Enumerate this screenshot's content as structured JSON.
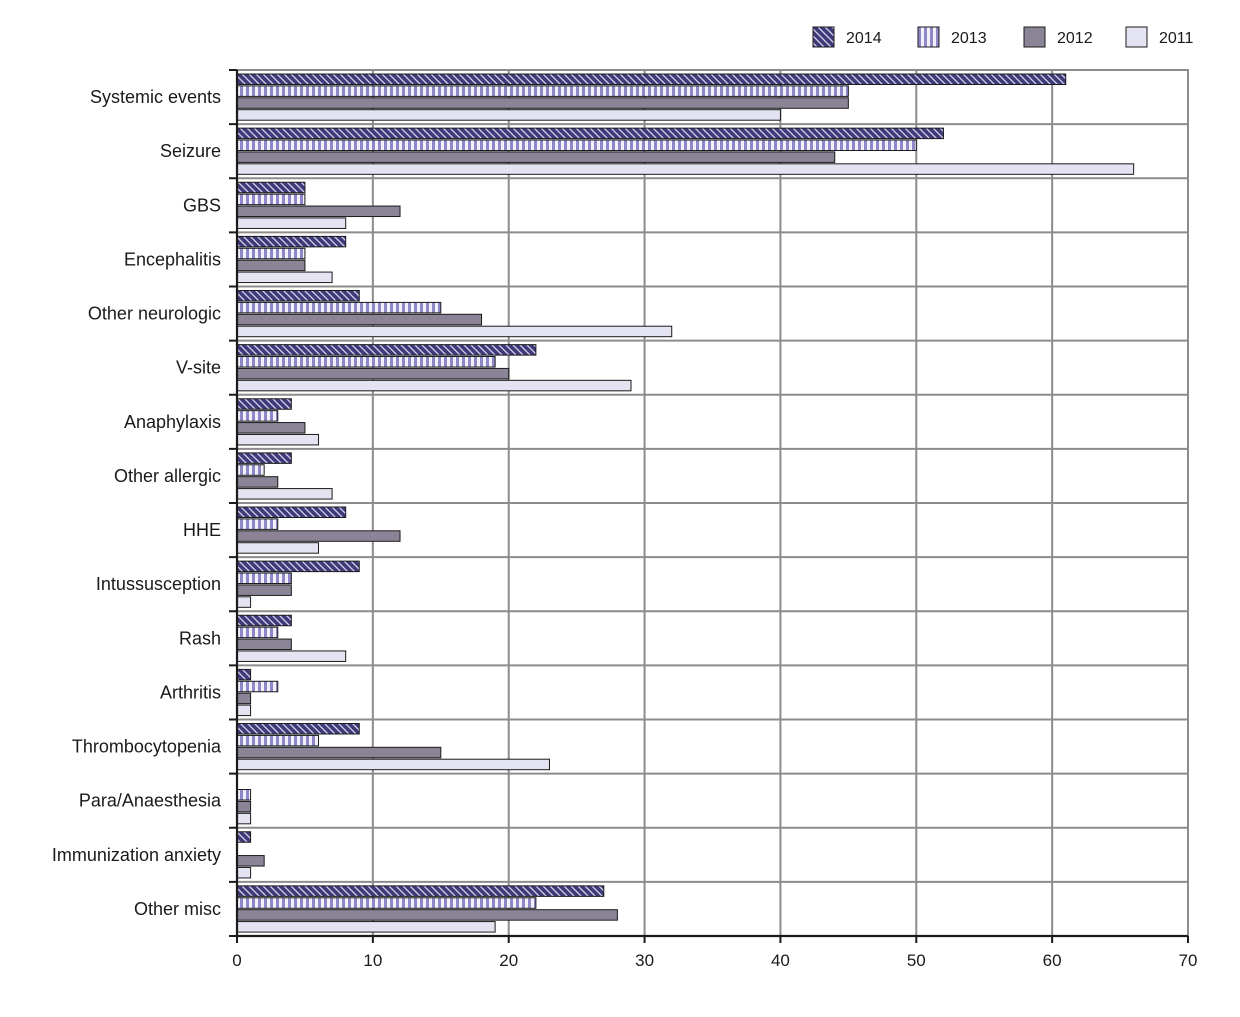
{
  "chart_data": {
    "type": "bar",
    "orientation": "horizontal",
    "title": "",
    "xlabel": "",
    "ylabel": "",
    "xlim": [
      0,
      70
    ],
    "x_ticks": [
      0,
      10,
      20,
      30,
      40,
      50,
      60,
      70
    ],
    "grid": true,
    "legend_position": "top-right",
    "categories": [
      "Systemic events",
      "Seizure",
      "GBS",
      "Encephalitis",
      "Other neurologic",
      "V-site",
      "Anaphylaxis",
      "Other allergic",
      "HHE",
      "Intussusception",
      "Rash",
      "Arthritis",
      "Thrombocytopenia",
      "Para/Anaesthesia",
      "Immunization anxiety",
      "Other misc"
    ],
    "series": [
      {
        "name": "2014",
        "pattern": "diagonal-hatch",
        "color": "#3f3a78",
        "values": [
          61,
          52,
          5,
          8,
          9,
          22,
          4,
          4,
          8,
          9,
          4,
          1,
          9,
          0,
          1,
          27
        ]
      },
      {
        "name": "2013",
        "pattern": "vertical-stripes",
        "color": "#9b95cf",
        "values": [
          45,
          50,
          5,
          5,
          15,
          19,
          3,
          2,
          3,
          4,
          3,
          3,
          6,
          1,
          0,
          22
        ]
      },
      {
        "name": "2012",
        "pattern": "solid",
        "color": "#8a8496",
        "values": [
          45,
          44,
          12,
          5,
          18,
          20,
          5,
          3,
          12,
          4,
          4,
          1,
          15,
          1,
          2,
          28
        ]
      },
      {
        "name": "2011",
        "pattern": "solid",
        "color": "#e3e3f1",
        "values": [
          40,
          66,
          8,
          7,
          32,
          29,
          6,
          7,
          6,
          1,
          8,
          1,
          23,
          1,
          1,
          19
        ]
      }
    ]
  }
}
